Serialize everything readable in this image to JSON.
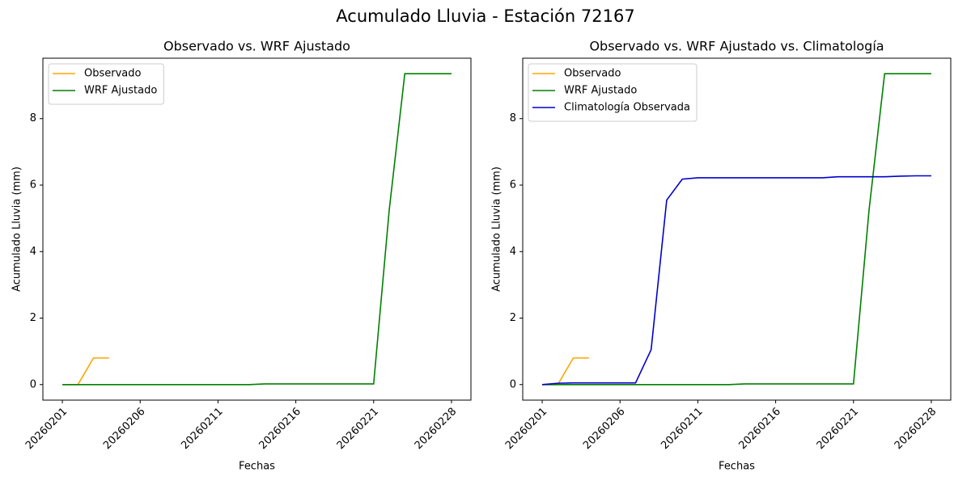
{
  "title": "Acumulado Lluvia - Estación 72167",
  "chart_data": [
    {
      "type": "line",
      "title": "Observado vs. WRF Ajustado",
      "xlabel": "Fechas",
      "ylabel": "Acumulado Lluvia (mm)",
      "categories": [
        "20260201",
        null,
        null,
        null,
        null,
        "20260206",
        null,
        null,
        null,
        null,
        "20260211",
        null,
        null,
        null,
        null,
        "20260216",
        null,
        null,
        null,
        null,
        "20260221",
        null,
        null,
        null,
        null,
        "20260228"
      ],
      "series": [
        {
          "name": "Observado",
          "color": "#ffa500",
          "values": [
            0,
            0,
            0.8,
            0.8,
            null,
            null,
            null,
            null,
            null,
            null,
            null,
            null,
            null,
            null,
            null,
            null,
            null,
            null,
            null,
            null,
            null,
            null,
            null,
            null,
            null,
            null
          ]
        },
        {
          "name": "WRF Ajustado",
          "color": "#008000",
          "values": [
            0,
            0,
            0,
            0,
            0,
            0,
            0,
            0,
            0,
            0,
            0,
            0,
            0,
            0.02,
            0.02,
            0.02,
            0.02,
            0.02,
            0.02,
            0.02,
            0.02,
            5.25,
            9.35,
            9.35,
            9.35,
            9.35
          ]
        }
      ],
      "xlim": [
        -1.25,
        26.25
      ],
      "ylim": [
        -0.4675,
        9.8175
      ],
      "yticks": [
        0,
        2,
        4,
        6,
        8
      ],
      "legend": "upper left"
    },
    {
      "type": "line",
      "title": "Observado vs. WRF Ajustado vs. Climatología",
      "xlabel": "Fechas",
      "ylabel": "Acumulado Lluvia (mm)",
      "categories": [
        "20260201",
        null,
        null,
        null,
        null,
        "20260206",
        null,
        null,
        null,
        null,
        "20260211",
        null,
        null,
        null,
        null,
        "20260216",
        null,
        null,
        null,
        null,
        "20260221",
        null,
        null,
        null,
        null,
        "20260228"
      ],
      "series": [
        {
          "name": "Observado",
          "color": "#ffa500",
          "values": [
            0,
            0,
            0.8,
            0.8,
            null,
            null,
            null,
            null,
            null,
            null,
            null,
            null,
            null,
            null,
            null,
            null,
            null,
            null,
            null,
            null,
            null,
            null,
            null,
            null,
            null,
            null
          ]
        },
        {
          "name": "WRF Ajustado",
          "color": "#008000",
          "values": [
            0,
            0,
            0,
            0,
            0,
            0,
            0,
            0,
            0,
            0,
            0,
            0,
            0,
            0.02,
            0.02,
            0.02,
            0.02,
            0.02,
            0.02,
            0.02,
            0.02,
            5.25,
            9.35,
            9.35,
            9.35,
            9.35
          ]
        },
        {
          "name": "Climatología Observada",
          "color": "#0000cd",
          "values": [
            0,
            0.04,
            0.05,
            0.05,
            0.05,
            0.05,
            0.05,
            1.05,
            5.55,
            6.18,
            6.22,
            6.22,
            6.22,
            6.22,
            6.22,
            6.22,
            6.22,
            6.22,
            6.22,
            6.25,
            6.25,
            6.25,
            6.25,
            6.27,
            6.28,
            6.28
          ]
        }
      ],
      "xlim": [
        -1.25,
        26.25
      ],
      "ylim": [
        -0.4675,
        9.8175
      ],
      "yticks": [
        0,
        2,
        4,
        6,
        8
      ],
      "legend": "upper left"
    }
  ]
}
